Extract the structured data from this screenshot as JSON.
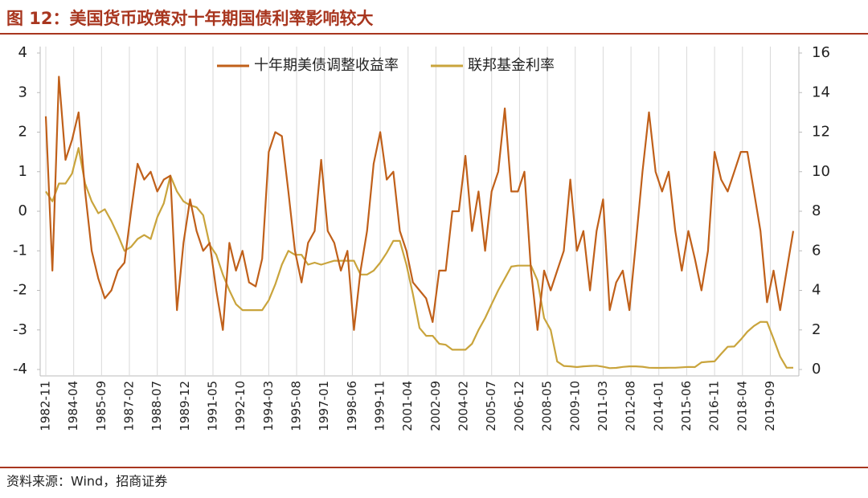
{
  "chart_data": {
    "type": "line",
    "title": "图 12：美国货币政策对十年期国债利率影响较大",
    "source": "资料来源：Wind，招商证券",
    "legend": "upper center",
    "grid": "x",
    "x": [
      "1982-11",
      "1983-03",
      "1983-07",
      "1983-11",
      "1984-03",
      "1984-07",
      "1984-11",
      "1985-03",
      "1985-07",
      "1985-11",
      "1986-03",
      "1986-07",
      "1986-11",
      "1987-03",
      "1987-07",
      "1987-11",
      "1988-03",
      "1988-07",
      "1988-11",
      "1989-03",
      "1989-07",
      "1989-11",
      "1990-03",
      "1990-07",
      "1990-11",
      "1991-03",
      "1991-07",
      "1991-11",
      "1992-03",
      "1992-07",
      "1992-11",
      "1993-03",
      "1993-07",
      "1993-11",
      "1994-03",
      "1994-07",
      "1994-11",
      "1995-03",
      "1995-07",
      "1995-11",
      "1996-03",
      "1996-07",
      "1996-11",
      "1997-03",
      "1997-07",
      "1997-11",
      "1998-03",
      "1998-07",
      "1998-11",
      "1999-03",
      "1999-07",
      "1999-11",
      "2000-03",
      "2000-07",
      "2000-11",
      "2001-03",
      "2001-07",
      "2001-11",
      "2002-03",
      "2002-07",
      "2002-11",
      "2003-03",
      "2003-07",
      "2003-11",
      "2004-03",
      "2004-07",
      "2004-11",
      "2005-03",
      "2005-07",
      "2005-11",
      "2006-03",
      "2006-07",
      "2006-11",
      "2007-03",
      "2007-07",
      "2007-11",
      "2008-03",
      "2008-07",
      "2008-11",
      "2009-03",
      "2009-07",
      "2009-11",
      "2010-03",
      "2010-07",
      "2010-11",
      "2011-03",
      "2011-07",
      "2011-11",
      "2012-03",
      "2012-07",
      "2012-11",
      "2013-03",
      "2013-07",
      "2013-11",
      "2014-03",
      "2014-07",
      "2014-11",
      "2015-03",
      "2015-07",
      "2015-11",
      "2016-03",
      "2016-07",
      "2016-11",
      "2017-03",
      "2017-07",
      "2017-11",
      "2018-03",
      "2018-07",
      "2018-11",
      "2019-03",
      "2019-07",
      "2019-11",
      "2020-03",
      "2020-07",
      "2020-11"
    ],
    "xlim": [
      "1982-11",
      "2020-11"
    ],
    "xticks": [
      "1982-11",
      "1984-04",
      "1985-09",
      "1987-02",
      "1988-07",
      "1989-12",
      "1991-05",
      "1992-10",
      "1994-03",
      "1995-08",
      "1997-01",
      "1998-06",
      "1999-11",
      "2001-04",
      "2002-09",
      "2004-02",
      "2005-07",
      "2006-12",
      "2008-05",
      "2009-10",
      "2011-03",
      "2012-08",
      "2014-01",
      "2015-06",
      "2016-11",
      "2018-04",
      "2019-09"
    ],
    "ylim": [
      -4,
      4
    ],
    "yticks": [
      4,
      3,
      2,
      1,
      0,
      -1,
      -2,
      -3,
      -4
    ],
    "y2lim": [
      0,
      16
    ],
    "y2ticks": [
      16,
      14,
      12,
      10,
      8,
      6,
      4,
      2,
      0
    ],
    "series": [
      {
        "name": "十年期美债调整收益率",
        "color": "#c0601a",
        "values": [
          2.4,
          -1.5,
          3.4,
          1.3,
          1.8,
          2.5,
          0.5,
          -1.0,
          -1.7,
          -2.2,
          -2.0,
          -1.5,
          -1.3,
          0.0,
          1.2,
          0.8,
          1.0,
          0.5,
          0.8,
          0.9,
          -2.5,
          -0.8,
          0.3,
          -0.5,
          -1.0,
          -0.8,
          -2.0,
          -3.0,
          -0.8,
          -1.5,
          -1.0,
          -1.8,
          -1.9,
          -1.2,
          1.5,
          2.0,
          1.9,
          0.5,
          -1.0,
          -1.8,
          -0.8,
          -0.5,
          1.3,
          -0.5,
          -0.8,
          -1.5,
          -1.0,
          -3.0,
          -1.5,
          -0.5,
          1.2,
          2.0,
          0.8,
          1.0,
          -0.5,
          -1.0,
          -1.8,
          -2.0,
          -2.2,
          -2.8,
          -1.5,
          -1.5,
          0.0,
          0.0,
          1.4,
          -0.5,
          0.5,
          -1.0,
          0.5,
          1.0,
          2.6,
          0.5,
          0.5,
          1.0,
          -1.5,
          -3.0,
          -1.5,
          -2.0,
          -1.5,
          -1.0,
          0.8,
          -1.0,
          -0.5,
          -2.0,
          -0.5,
          0.3,
          -2.5,
          -1.8,
          -1.5,
          -2.5,
          -0.8,
          1.0,
          2.5,
          1.0,
          0.5,
          1.0,
          -0.5,
          -1.5,
          -0.5,
          -1.2,
          -2.0,
          -1.0,
          1.5,
          0.8,
          0.5,
          1.0,
          1.5,
          1.5,
          0.5,
          -0.5,
          -2.3,
          -1.5,
          -2.5,
          -1.5,
          -0.5
        ]
      },
      {
        "name": "联邦基金利率",
        "color": "#c9a43c",
        "axis": "y2",
        "values": [
          9.0,
          8.5,
          9.4,
          9.4,
          9.9,
          11.2,
          9.4,
          8.5,
          7.9,
          8.1,
          7.5,
          6.8,
          6.0,
          6.2,
          6.6,
          6.8,
          6.6,
          7.7,
          8.4,
          9.8,
          9.0,
          8.5,
          8.3,
          8.2,
          7.8,
          6.3,
          5.8,
          4.8,
          4.0,
          3.3,
          3.0,
          3.0,
          3.0,
          3.0,
          3.5,
          4.3,
          5.3,
          6.0,
          5.8,
          5.8,
          5.3,
          5.4,
          5.3,
          5.4,
          5.5,
          5.5,
          5.5,
          5.5,
          4.8,
          4.8,
          5.0,
          5.4,
          5.9,
          6.5,
          6.5,
          5.3,
          3.8,
          2.1,
          1.7,
          1.7,
          1.3,
          1.25,
          1.0,
          1.0,
          1.0,
          1.3,
          2.0,
          2.6,
          3.3,
          4.0,
          4.6,
          5.2,
          5.25,
          5.25,
          5.25,
          4.5,
          2.6,
          2.0,
          0.4,
          0.18,
          0.16,
          0.12,
          0.16,
          0.18,
          0.19,
          0.14,
          0.07,
          0.08,
          0.13,
          0.16,
          0.16,
          0.14,
          0.09,
          0.08,
          0.08,
          0.09,
          0.09,
          0.11,
          0.13,
          0.12,
          0.36,
          0.39,
          0.41,
          0.79,
          1.15,
          1.16,
          1.51,
          1.91,
          2.2,
          2.41,
          2.4,
          1.55,
          0.65,
          0.09,
          0.09
        ]
      }
    ]
  }
}
